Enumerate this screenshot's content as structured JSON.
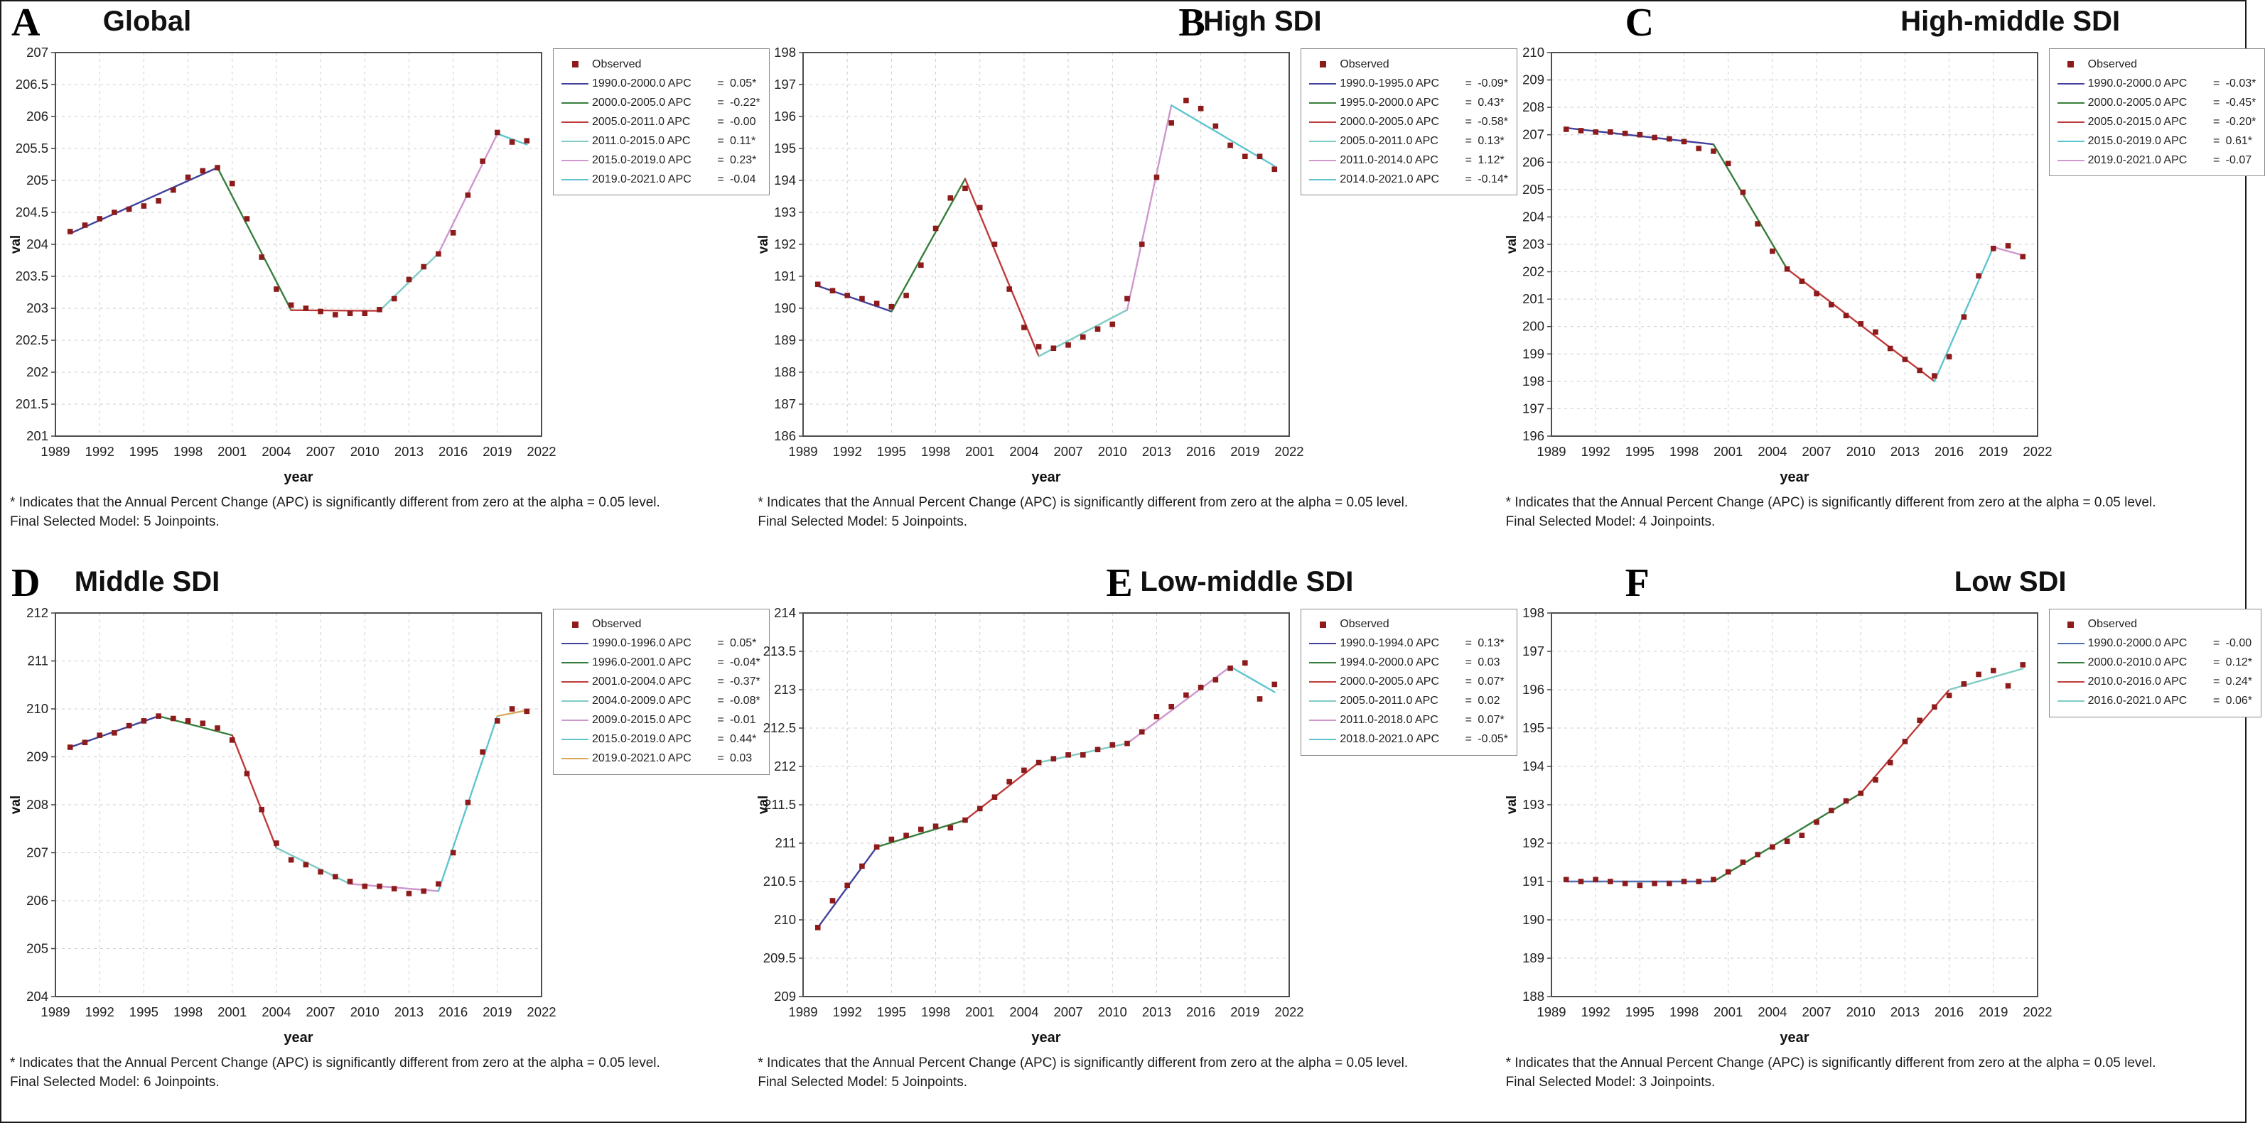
{
  "figure": {
    "xlabel": "year",
    "ylabel": "val",
    "xmin": 1989,
    "xmax": 2022,
    "xticks": [
      1989,
      1992,
      1995,
      1998,
      2001,
      2004,
      2007,
      2010,
      2013,
      2016,
      2019,
      2022
    ],
    "years": [
      1990,
      1991,
      1992,
      1993,
      1994,
      1995,
      1996,
      1997,
      1998,
      1999,
      2000,
      2001,
      2002,
      2003,
      2004,
      2005,
      2006,
      2007,
      2008,
      2009,
      2010,
      2011,
      2012,
      2013,
      2014,
      2015,
      2016,
      2017,
      2018,
      2019,
      2020,
      2021
    ],
    "observed_label": "Observed",
    "observed_color": "#8e1b1b",
    "footnote_significance": "* Indicates that the Annual Percent Change (APC) is significantly different from zero at the alpha = 0.05 level."
  },
  "chart_data": [
    {
      "letter": "A",
      "title": "Global",
      "type": "line",
      "xlabel": "year",
      "ylabel": "val",
      "ylim": [
        201,
        207
      ],
      "ytick_step": 0.5,
      "observed": [
        204.2,
        204.3,
        204.4,
        204.5,
        204.55,
        204.6,
        204.68,
        204.85,
        205.05,
        205.15,
        205.2,
        204.95,
        204.4,
        203.8,
        203.3,
        203.05,
        203.0,
        202.95,
        202.9,
        202.92,
        202.92,
        202.98,
        203.15,
        203.45,
        203.65,
        203.85,
        204.18,
        204.77,
        205.3,
        205.75,
        205.6,
        205.62
      ],
      "segments": [
        {
          "period": "1990.0-2000.0 APC",
          "apc": "0.05*",
          "color": "#41419b",
          "fit": [
            1990,
            204.17,
            2000,
            205.2
          ]
        },
        {
          "period": "2000.0-2005.0 APC",
          "apc": "-0.22*",
          "color": "#377e3c",
          "fit": [
            2000,
            205.2,
            2005,
            202.97
          ]
        },
        {
          "period": "2005.0-2011.0 APC",
          "apc": "-0.00",
          "color": "#bf3b3b",
          "fit": [
            2005,
            202.97,
            2011,
            202.96
          ]
        },
        {
          "period": "2011.0-2015.0 APC",
          "apc": "0.11*",
          "color": "#7fccc4",
          "fit": [
            2011,
            202.96,
            2015,
            203.86
          ]
        },
        {
          "period": "2015.0-2019.0 APC",
          "apc": "0.23*",
          "color": "#cf97cc",
          "fit": [
            2015,
            203.86,
            2019,
            205.73
          ]
        },
        {
          "period": "2019.0-2021.0 APC",
          "apc": "-0.04",
          "color": "#5ec5cf",
          "fit": [
            2019,
            205.73,
            2021,
            205.56
          ]
        }
      ],
      "model_note": "Final Selected Model: 5 Joinpoints."
    },
    {
      "letter": "B",
      "title": "High SDI",
      "type": "line",
      "xlabel": "year",
      "ylabel": "val",
      "ylim": [
        186,
        198
      ],
      "ytick_step": 1,
      "observed": [
        190.75,
        190.55,
        190.4,
        190.3,
        190.15,
        190.05,
        190.4,
        191.35,
        192.5,
        193.45,
        193.75,
        193.15,
        192.0,
        190.6,
        189.4,
        188.8,
        188.75,
        188.85,
        189.1,
        189.35,
        189.5,
        190.3,
        192.0,
        194.1,
        195.8,
        196.5,
        196.25,
        195.7,
        195.1,
        194.75,
        194.75,
        194.35
      ],
      "segments": [
        {
          "period": "1990.0-1995.0 APC",
          "apc": "-0.09*",
          "color": "#41419b",
          "fit": [
            1990,
            190.7,
            1995,
            189.9
          ]
        },
        {
          "period": "1995.0-2000.0 APC",
          "apc": "0.43*",
          "color": "#377e3c",
          "fit": [
            1995,
            189.9,
            2000,
            194.05
          ]
        },
        {
          "period": "2000.0-2005.0 APC",
          "apc": "-0.58*",
          "color": "#bf3b3b",
          "fit": [
            2000,
            194.05,
            2005,
            188.5
          ]
        },
        {
          "period": "2005.0-2011.0 APC",
          "apc": "0.13*",
          "color": "#7fccc4",
          "fit": [
            2005,
            188.5,
            2011,
            189.95
          ]
        },
        {
          "period": "2011.0-2014.0 APC",
          "apc": "1.12*",
          "color": "#cf97cc",
          "fit": [
            2011,
            189.95,
            2014,
            196.35
          ]
        },
        {
          "period": "2014.0-2021.0 APC",
          "apc": "-0.14*",
          "color": "#5ec5cf",
          "fit": [
            2014,
            196.35,
            2021,
            194.45
          ]
        }
      ],
      "model_note": "Final Selected Model: 5 Joinpoints."
    },
    {
      "letter": "C",
      "title": "High-middle SDI",
      "type": "line",
      "xlabel": "year",
      "ylabel": "val",
      "ylim": [
        196,
        210
      ],
      "ytick_step": 1,
      "observed": [
        207.2,
        207.15,
        207.1,
        207.1,
        207.05,
        207.0,
        206.9,
        206.85,
        206.75,
        206.5,
        206.4,
        205.95,
        204.9,
        203.75,
        202.75,
        202.1,
        201.65,
        201.2,
        200.8,
        200.4,
        200.1,
        199.8,
        199.2,
        198.8,
        198.4,
        198.2,
        198.9,
        200.35,
        201.85,
        202.85,
        202.95,
        202.55
      ],
      "segments": [
        {
          "period": "1990.0-2000.0 APC",
          "apc": "-0.03*",
          "color": "#41419b",
          "fit": [
            1990,
            207.25,
            2000,
            206.65
          ]
        },
        {
          "period": "2000.0-2005.0 APC",
          "apc": "-0.45*",
          "color": "#377e3c",
          "fit": [
            2000,
            206.65,
            2005,
            202.1
          ]
        },
        {
          "period": "2005.0-2015.0 APC",
          "apc": "-0.20*",
          "color": "#bf3b3b",
          "fit": [
            2005,
            202.1,
            2015,
            198.0
          ]
        },
        {
          "period": "2015.0-2019.0 APC",
          "apc": "0.61*",
          "color": "#5ec5cf",
          "fit": [
            2015,
            198.0,
            2019,
            202.9
          ]
        },
        {
          "period": "2019.0-2021.0 APC",
          "apc": "-0.07",
          "color": "#cf97cc",
          "fit": [
            2019,
            202.9,
            2021,
            202.6
          ]
        }
      ],
      "model_note": "Final Selected Model: 4 Joinpoints."
    },
    {
      "letter": "D",
      "title": "Middle SDI",
      "type": "line",
      "xlabel": "year",
      "ylabel": "val",
      "ylim": [
        204,
        212
      ],
      "ytick_step": 1,
      "observed": [
        209.2,
        209.3,
        209.45,
        209.5,
        209.65,
        209.75,
        209.85,
        209.8,
        209.75,
        209.7,
        209.6,
        209.35,
        208.65,
        207.9,
        207.2,
        206.85,
        206.75,
        206.6,
        206.5,
        206.4,
        206.3,
        206.3,
        206.25,
        206.15,
        206.2,
        206.35,
        207.0,
        208.05,
        209.1,
        209.75,
        210.0,
        209.95
      ],
      "segments": [
        {
          "period": "1990.0-1996.0 APC",
          "apc": "0.05*",
          "color": "#41419b",
          "fit": [
            1990,
            209.2,
            1996,
            209.85
          ]
        },
        {
          "period": "1996.0-2001.0 APC",
          "apc": "-0.04*",
          "color": "#377e3c",
          "fit": [
            1996,
            209.85,
            2001,
            209.45
          ]
        },
        {
          "period": "2001.0-2004.0 APC",
          "apc": "-0.37*",
          "color": "#bf3b3b",
          "fit": [
            2001,
            209.45,
            2004,
            207.1
          ]
        },
        {
          "period": "2004.0-2009.0 APC",
          "apc": "-0.08*",
          "color": "#7fccc4",
          "fit": [
            2004,
            207.1,
            2009,
            206.35
          ]
        },
        {
          "period": "2009.0-2015.0 APC",
          "apc": "-0.01",
          "color": "#cf97cc",
          "fit": [
            2009,
            206.35,
            2015,
            206.2
          ]
        },
        {
          "period": "2015.0-2019.0 APC",
          "apc": "0.44*",
          "color": "#5ec5cf",
          "fit": [
            2015,
            206.2,
            2019,
            209.85
          ]
        },
        {
          "period": "2019.0-2021.0 APC",
          "apc": "0.03",
          "color": "#d8a95b",
          "fit": [
            2019,
            209.85,
            2021,
            209.97
          ]
        }
      ],
      "model_note": "Final Selected Model: 6 Joinpoints."
    },
    {
      "letter": "E",
      "title": "Low-middle SDI",
      "type": "line",
      "xlabel": "year",
      "ylabel": "val",
      "ylim": [
        209,
        214
      ],
      "ytick_step": 0.5,
      "observed": [
        209.9,
        210.25,
        210.45,
        210.7,
        210.95,
        211.05,
        211.1,
        211.18,
        211.22,
        211.2,
        211.3,
        211.45,
        211.6,
        211.8,
        211.95,
        212.05,
        212.1,
        212.15,
        212.15,
        212.22,
        212.28,
        212.3,
        212.45,
        212.65,
        212.78,
        212.93,
        213.03,
        213.13,
        213.28,
        213.35,
        212.88,
        213.07
      ],
      "segments": [
        {
          "period": "1990.0-1994.0 APC",
          "apc": "0.13*",
          "color": "#41419b",
          "fit": [
            1990,
            209.9,
            1994,
            210.95
          ]
        },
        {
          "period": "1994.0-2000.0 APC",
          "apc": "0.03",
          "color": "#377e3c",
          "fit": [
            1994,
            210.95,
            2000,
            211.3
          ]
        },
        {
          "period": "2000.0-2005.0 APC",
          "apc": "0.07*",
          "color": "#bf3b3b",
          "fit": [
            2000,
            211.3,
            2005,
            212.05
          ]
        },
        {
          "period": "2005.0-2011.0 APC",
          "apc": "0.02",
          "color": "#7fccc4",
          "fit": [
            2005,
            212.05,
            2011,
            212.3
          ]
        },
        {
          "period": "2011.0-2018.0 APC",
          "apc": "0.07*",
          "color": "#cf97cc",
          "fit": [
            2011,
            212.3,
            2018,
            213.3
          ]
        },
        {
          "period": "2018.0-2021.0 APC",
          "apc": "-0.05*",
          "color": "#5ec5cf",
          "fit": [
            2018,
            213.3,
            2021,
            212.97
          ]
        }
      ],
      "model_note": "Final Selected Model: 5 Joinpoints."
    },
    {
      "letter": "F",
      "title": "Low SDI",
      "type": "line",
      "xlabel": "year",
      "ylabel": "val",
      "ylim": [
        188,
        198
      ],
      "ytick_step": 1,
      "observed": [
        191.05,
        191.0,
        191.05,
        191.0,
        190.95,
        190.9,
        190.95,
        190.95,
        191.0,
        191.0,
        191.05,
        191.25,
        191.5,
        191.7,
        191.9,
        192.05,
        192.2,
        192.55,
        192.85,
        193.1,
        193.3,
        193.65,
        194.1,
        194.65,
        195.2,
        195.55,
        195.85,
        196.15,
        196.4,
        196.5,
        196.1,
        196.65
      ],
      "segments": [
        {
          "period": "1990.0-2000.0 APC",
          "apc": "-0.00",
          "color": "#4f6fb0",
          "fit": [
            1990,
            191.0,
            2000,
            191.0
          ]
        },
        {
          "period": "2000.0-2010.0 APC",
          "apc": "0.12*",
          "color": "#377e3c",
          "fit": [
            2000,
            191.0,
            2010,
            193.3
          ]
        },
        {
          "period": "2010.0-2016.0 APC",
          "apc": "0.24*",
          "color": "#bf3b3b",
          "fit": [
            2010,
            193.3,
            2016,
            196.0
          ]
        },
        {
          "period": "2016.0-2021.0 APC",
          "apc": "0.06*",
          "color": "#7fccc4",
          "fit": [
            2016,
            196.0,
            2021,
            196.55
          ]
        }
      ],
      "model_note": "Final Selected Model: 3 Joinpoints."
    }
  ]
}
